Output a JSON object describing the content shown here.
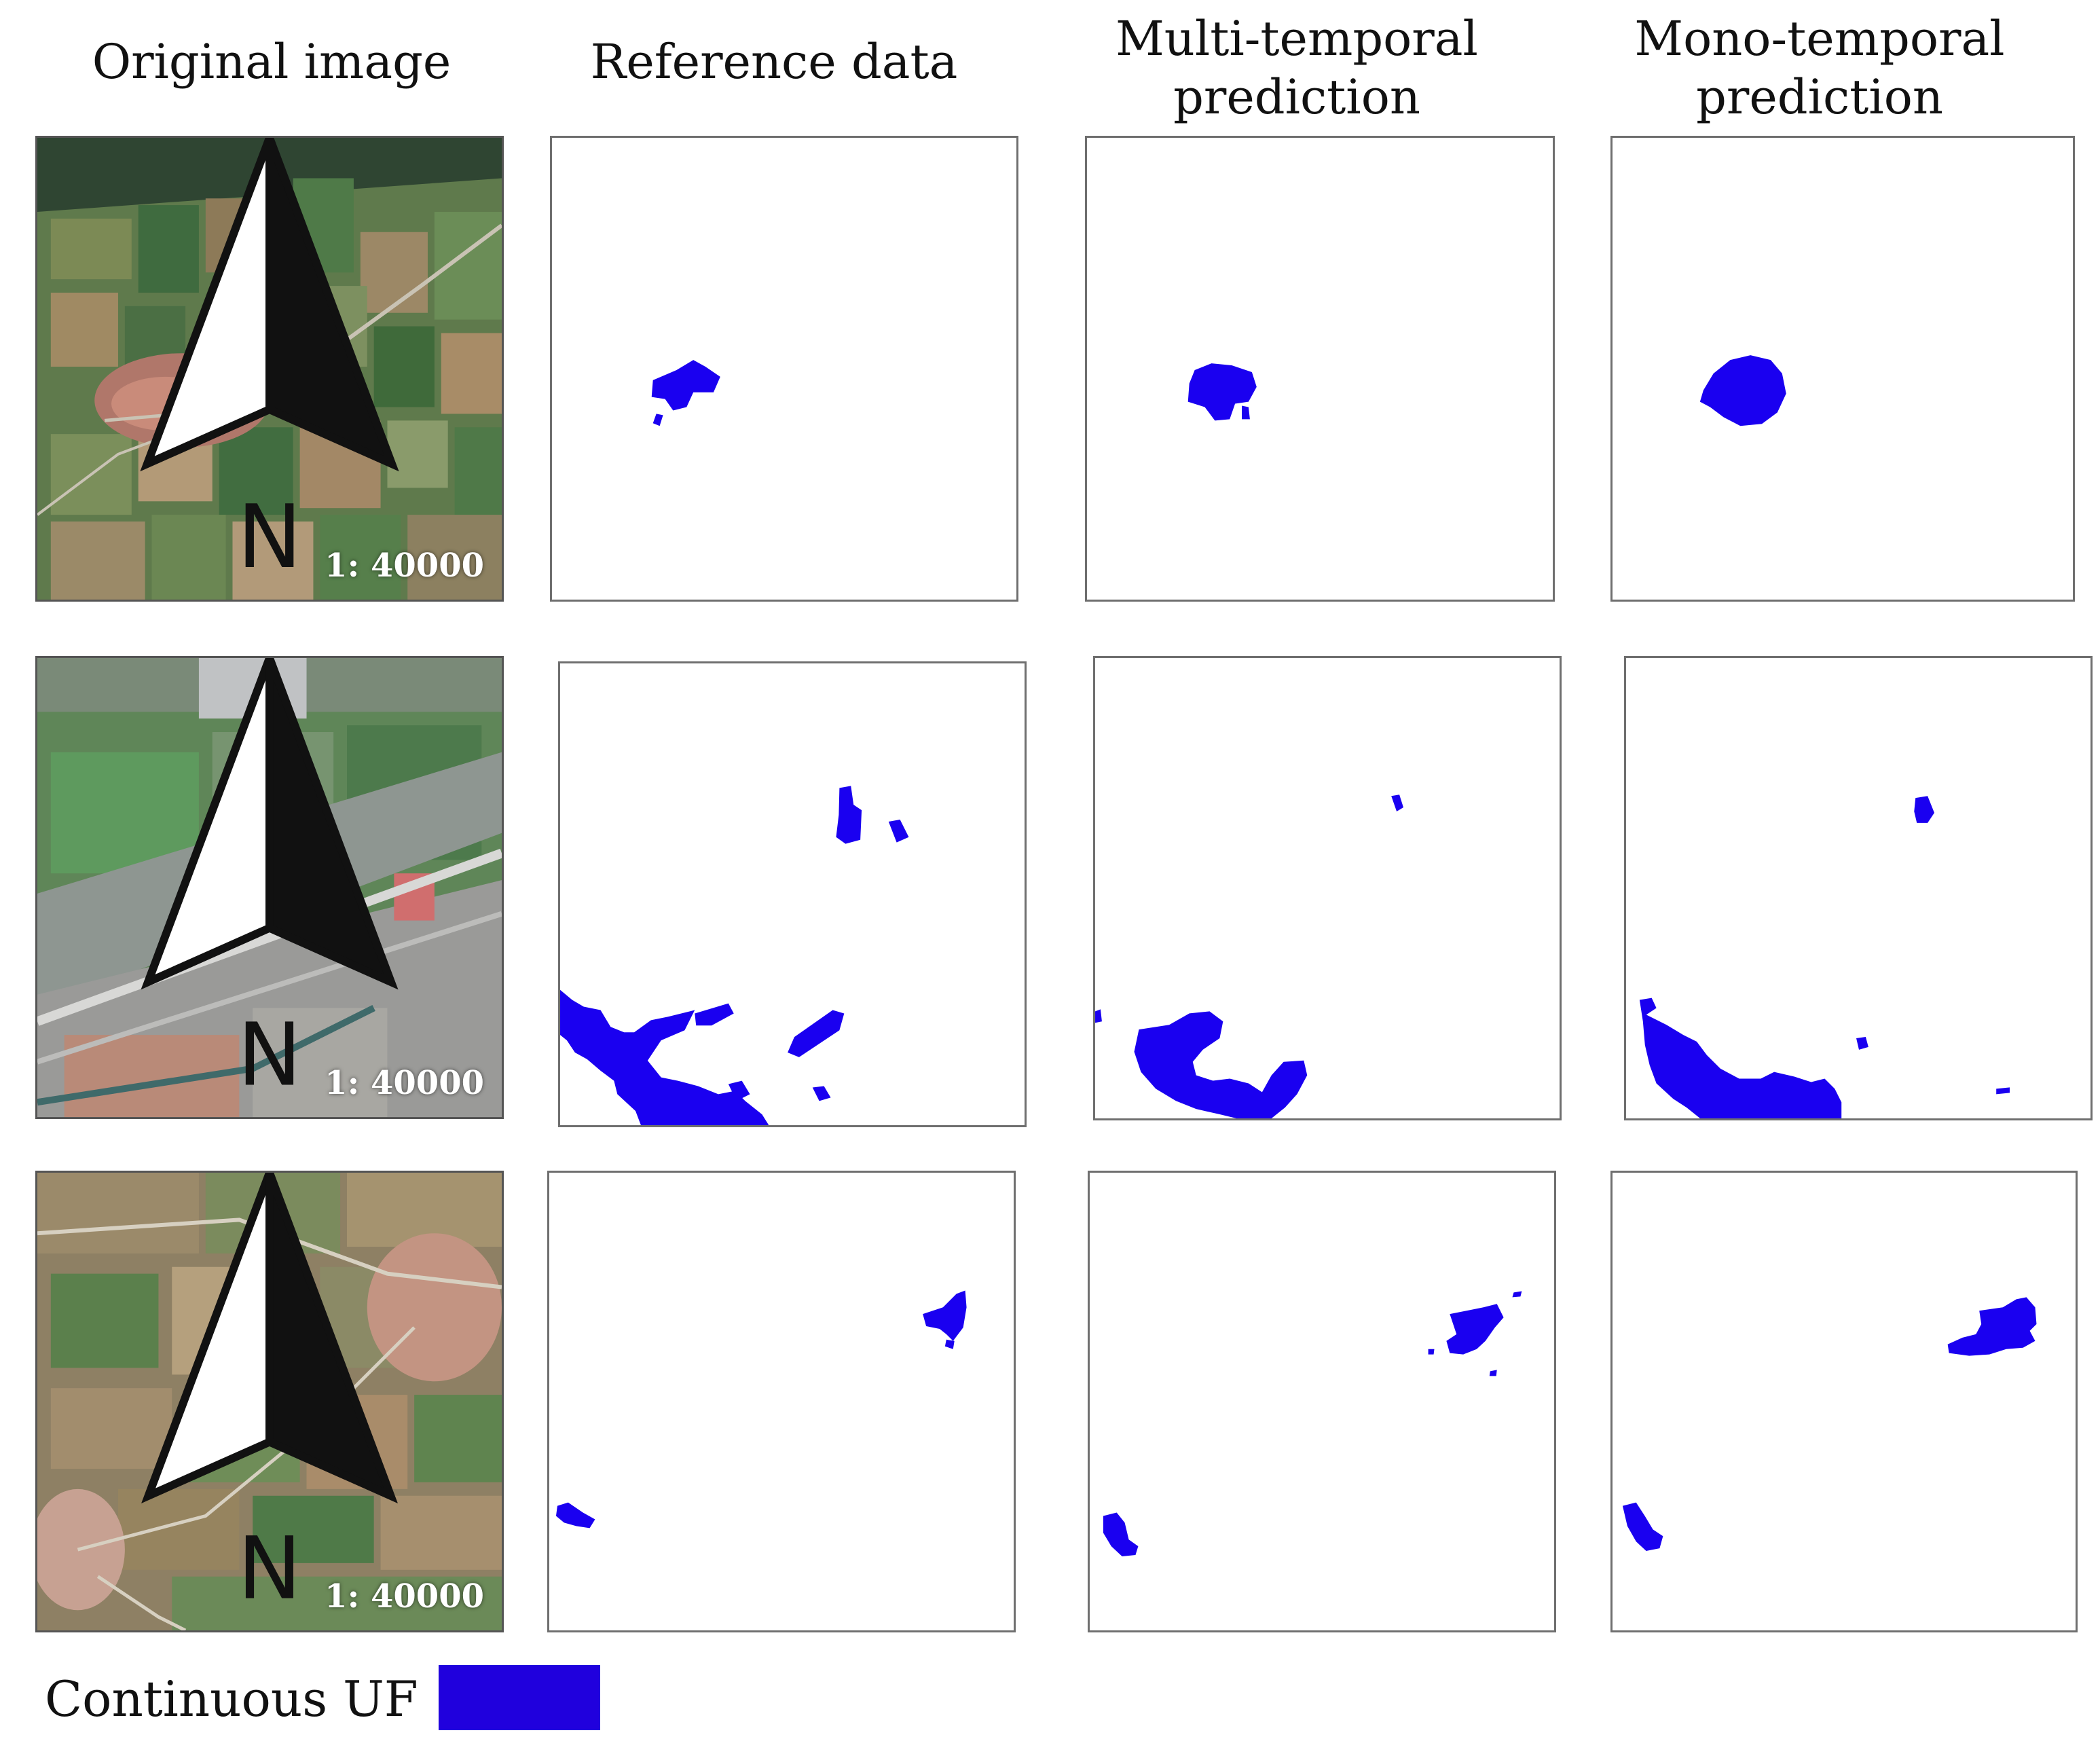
{
  "headers": {
    "original": [
      "Original  image"
    ],
    "reference": [
      "Reference data"
    ],
    "multi": [
      "Multi-temporal",
      "prediction"
    ],
    "mono": [
      "Mono-temporal",
      "prediction"
    ]
  },
  "north_label": "N",
  "scale_labels": [
    "1: 40000",
    "1: 40000",
    "1: 40000"
  ],
  "legend": {
    "label": "Continuous  UF",
    "color": "#2000dd"
  },
  "colors": {
    "mask": "#1a00f0",
    "panel_border": "#6f6f6f"
  },
  "icons": [
    "north-arrow-icon"
  ]
}
